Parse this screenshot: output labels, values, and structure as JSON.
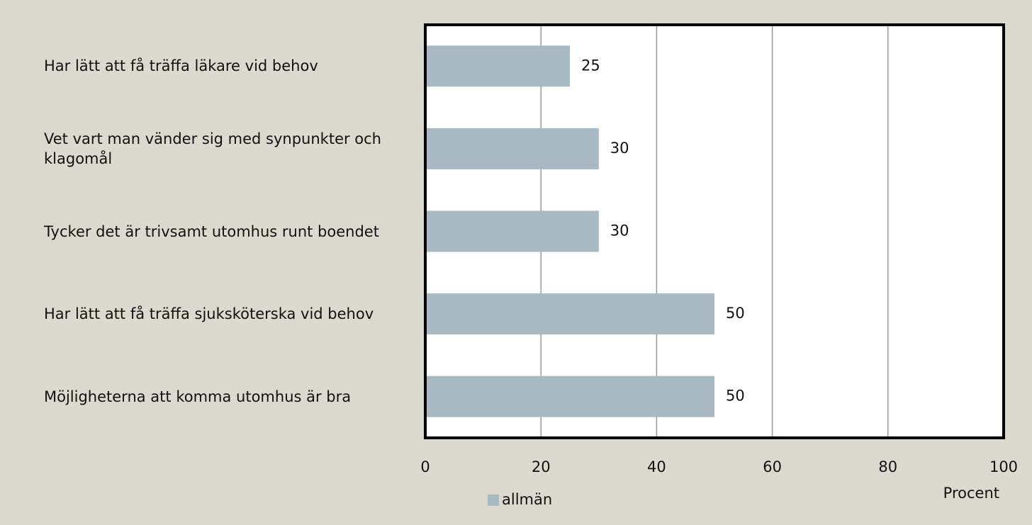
{
  "chart_data": {
    "type": "bar",
    "orientation": "horizontal",
    "categories": [
      "Har lätt att få träffa läkare vid behov",
      "Vet vart man vänder sig med synpunkter och klagomål",
      "Tycker det är trivsamt utomhus runt boendet",
      "Har lätt att få träffa sjuksköterska vid behov",
      "Möjligheterna att komma utomhus är bra"
    ],
    "series": [
      {
        "name": "allmän",
        "color": "#a8b9c4",
        "values": [
          25,
          30,
          30,
          50,
          50
        ]
      }
    ],
    "xlabel": "Procent",
    "xlim": [
      0,
      100
    ],
    "xticks": [
      0,
      20,
      40,
      60,
      80,
      100
    ],
    "grid": true,
    "legend": "bottom"
  }
}
